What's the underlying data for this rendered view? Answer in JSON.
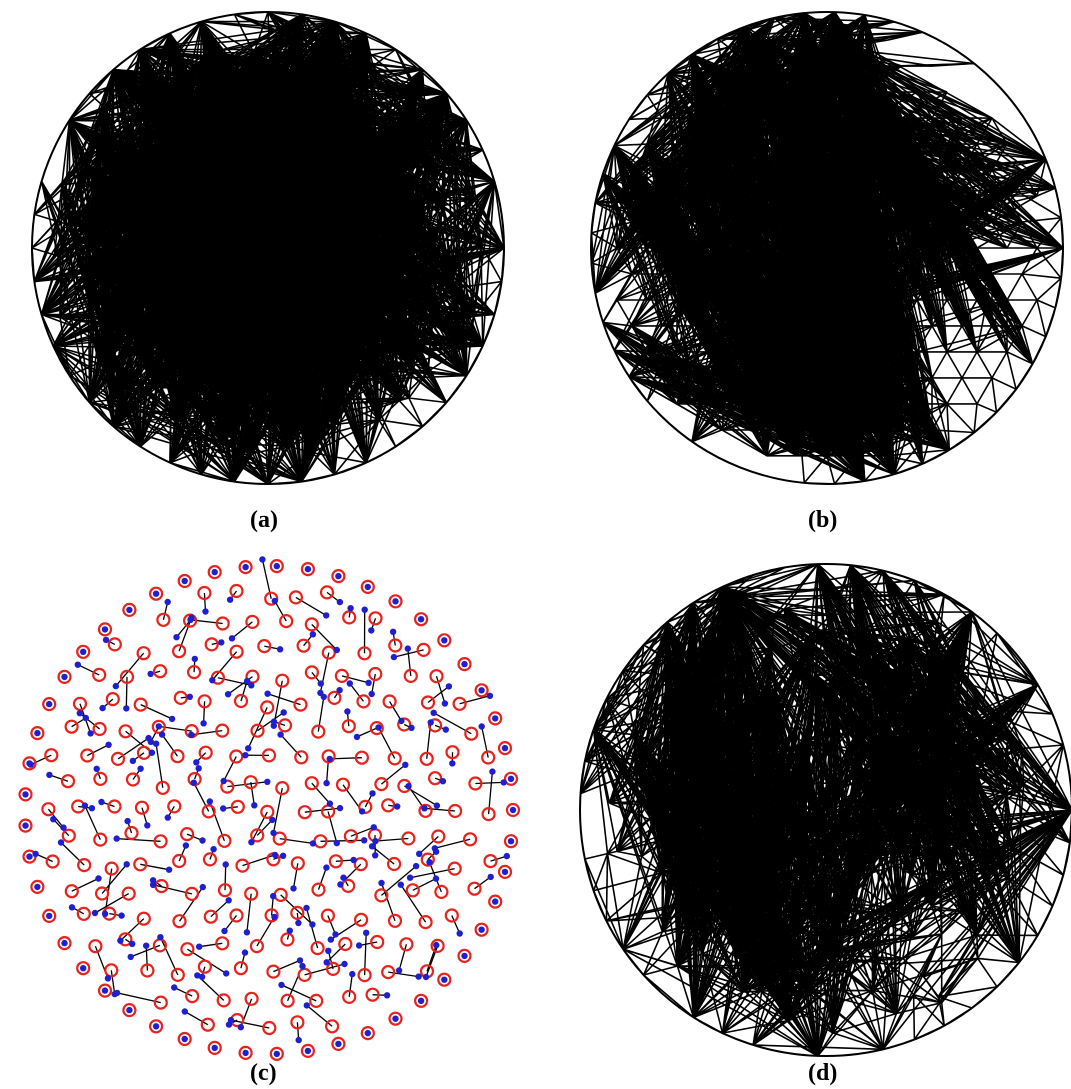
{
  "figure": {
    "panels": [
      {
        "id": "a",
        "caption": "(a)",
        "kind": "irregular-triangular-mesh"
      },
      {
        "id": "b",
        "caption": "(b)",
        "kind": "regular-triangular-mesh"
      },
      {
        "id": "c",
        "caption": "(c)",
        "kind": "node-displacement-map"
      },
      {
        "id": "d",
        "caption": "(d)",
        "kind": "tangled-triangular-mesh"
      }
    ],
    "colors": {
      "mesh_edge": "#000000",
      "boundary": "#000000",
      "target_marker": "#e8231d",
      "source_marker": "#1f1fcf",
      "displacement_line": "#000000"
    }
  }
}
